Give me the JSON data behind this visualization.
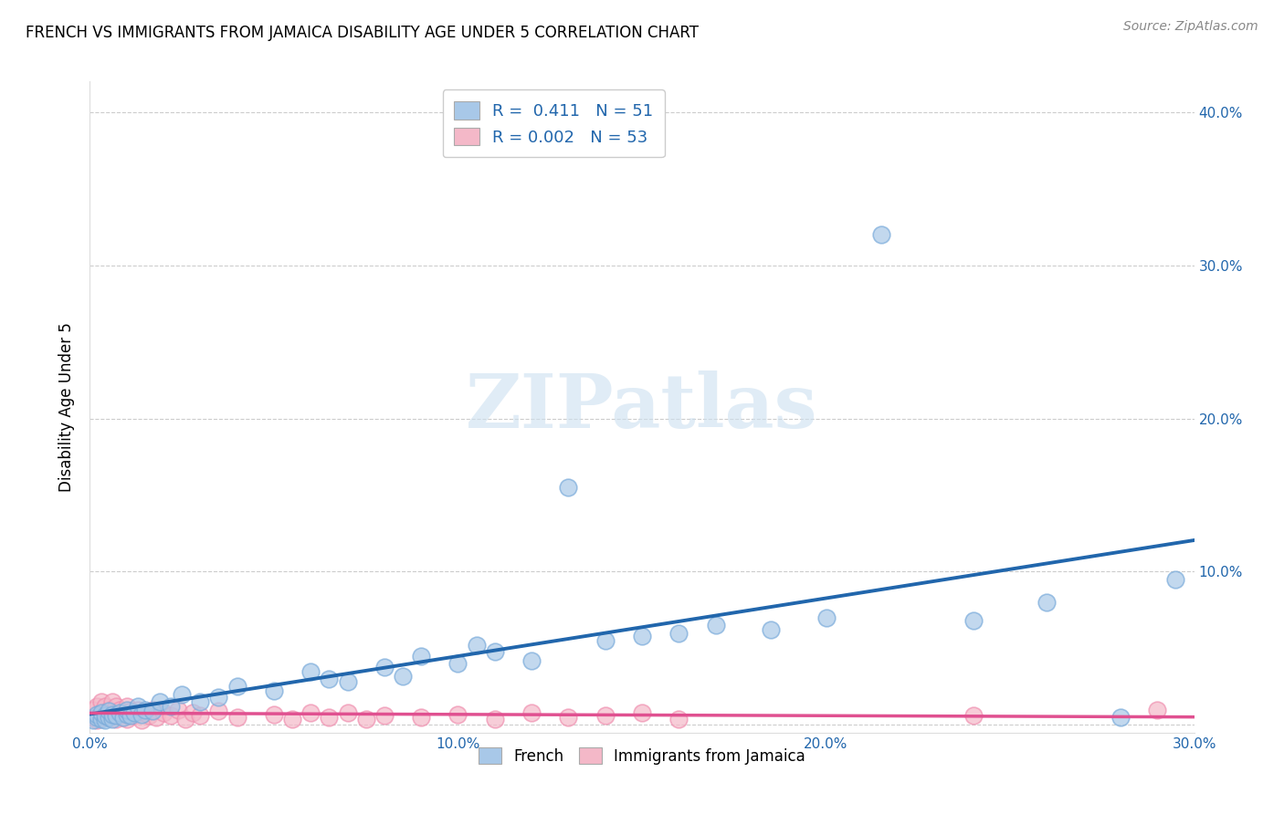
{
  "title": "FRENCH VS IMMIGRANTS FROM JAMAICA DISABILITY AGE UNDER 5 CORRELATION CHART",
  "source": "Source: ZipAtlas.com",
  "ylabel": "Disability Age Under 5",
  "xlim": [
    0.0,
    0.3
  ],
  "ylim": [
    -0.005,
    0.42
  ],
  "french_R": 0.411,
  "french_N": 51,
  "jamaica_R": 0.002,
  "jamaica_N": 53,
  "blue_color": "#a8c8e8",
  "pink_color": "#f4b8c8",
  "blue_edge_color": "#7aabda",
  "pink_edge_color": "#f090b0",
  "blue_line_color": "#2166ac",
  "pink_line_color": "#e05090",
  "watermark": "ZIPatlas",
  "french_x": [
    0.001,
    0.002,
    0.002,
    0.003,
    0.003,
    0.004,
    0.004,
    0.005,
    0.005,
    0.006,
    0.006,
    0.007,
    0.008,
    0.009,
    0.01,
    0.01,
    0.011,
    0.012,
    0.013,
    0.014,
    0.015,
    0.017,
    0.019,
    0.022,
    0.025,
    0.03,
    0.035,
    0.04,
    0.05,
    0.06,
    0.065,
    0.07,
    0.08,
    0.085,
    0.09,
    0.1,
    0.105,
    0.11,
    0.12,
    0.13,
    0.14,
    0.15,
    0.16,
    0.17,
    0.185,
    0.2,
    0.215,
    0.24,
    0.26,
    0.28,
    0.295
  ],
  "french_y": [
    0.003,
    0.005,
    0.007,
    0.004,
    0.008,
    0.003,
    0.006,
    0.005,
    0.009,
    0.004,
    0.007,
    0.006,
    0.008,
    0.005,
    0.007,
    0.01,
    0.006,
    0.008,
    0.012,
    0.007,
    0.01,
    0.009,
    0.015,
    0.012,
    0.02,
    0.015,
    0.018,
    0.025,
    0.022,
    0.035,
    0.03,
    0.028,
    0.038,
    0.032,
    0.045,
    0.04,
    0.052,
    0.048,
    0.042,
    0.155,
    0.055,
    0.058,
    0.06,
    0.065,
    0.062,
    0.07,
    0.32,
    0.068,
    0.08,
    0.005,
    0.095
  ],
  "jamaica_x": [
    0.001,
    0.001,
    0.002,
    0.002,
    0.003,
    0.003,
    0.004,
    0.004,
    0.005,
    0.005,
    0.006,
    0.006,
    0.007,
    0.007,
    0.008,
    0.008,
    0.009,
    0.009,
    0.01,
    0.01,
    0.011,
    0.012,
    0.013,
    0.014,
    0.015,
    0.016,
    0.017,
    0.018,
    0.02,
    0.022,
    0.024,
    0.026,
    0.028,
    0.03,
    0.035,
    0.04,
    0.05,
    0.055,
    0.06,
    0.065,
    0.07,
    0.075,
    0.08,
    0.09,
    0.1,
    0.11,
    0.12,
    0.13,
    0.14,
    0.15,
    0.16,
    0.24,
    0.29
  ],
  "jamaica_y": [
    0.01,
    0.005,
    0.012,
    0.003,
    0.008,
    0.015,
    0.007,
    0.012,
    0.005,
    0.01,
    0.008,
    0.015,
    0.004,
    0.012,
    0.007,
    0.01,
    0.005,
    0.008,
    0.012,
    0.004,
    0.009,
    0.006,
    0.01,
    0.003,
    0.008,
    0.006,
    0.01,
    0.005,
    0.008,
    0.006,
    0.01,
    0.004,
    0.008,
    0.006,
    0.009,
    0.005,
    0.007,
    0.004,
    0.008,
    0.005,
    0.008,
    0.004,
    0.006,
    0.005,
    0.007,
    0.004,
    0.008,
    0.005,
    0.006,
    0.008,
    0.004,
    0.006,
    0.01
  ]
}
